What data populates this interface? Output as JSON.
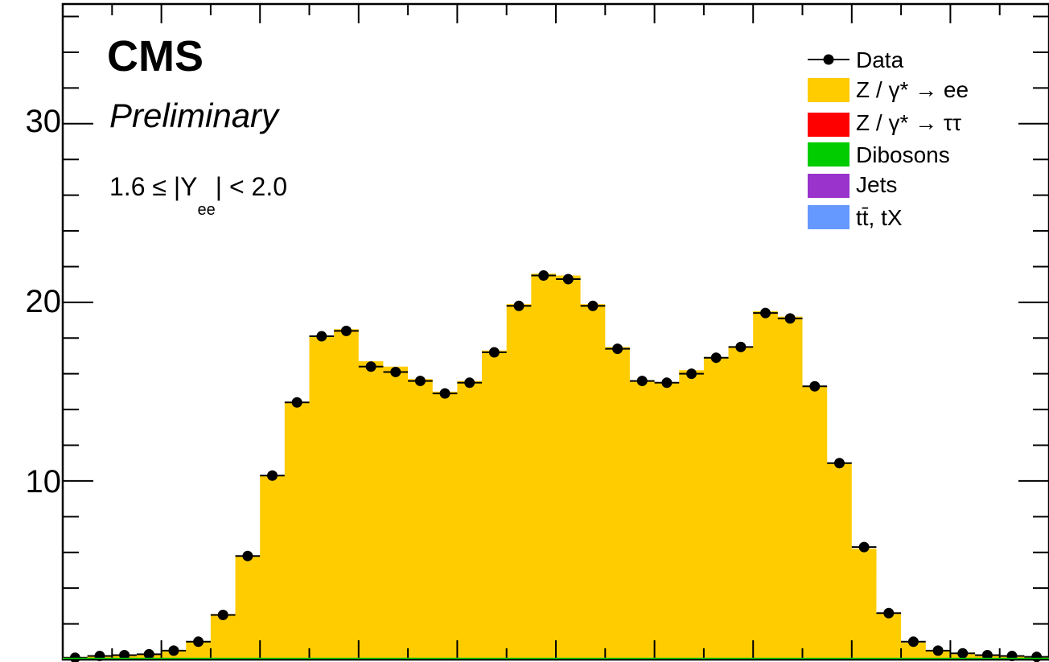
{
  "header": {
    "experiment": "CMS",
    "status": "Preliminary",
    "region": "1.6 ≤ |Y",
    "region_sub": "ee",
    "region_tail": "| < 2.0"
  },
  "legend": {
    "data": "Data",
    "z_ee_a": "Z / γ* → ee",
    "z_tt_a": "Z / γ* → ττ",
    "dibosons": "Dibosons",
    "jets": "Jets",
    "ttbar_a": "tt̄, tX"
  },
  "colors": {
    "z_ee": "#ffcc00",
    "z_tautau": "#ff0000",
    "dibosons": "#00cc00",
    "jets": "#9933cc",
    "ttbar": "#6699ff",
    "data": "#000000"
  },
  "chart_data": {
    "type": "bar",
    "title": "",
    "xlabel": "",
    "ylabel": "",
    "ylim": [
      0.0,
      36.7
    ],
    "y_ticks": [
      10,
      20,
      30
    ],
    "y_tick_labels": [
      "10",
      "20",
      "30"
    ],
    "n_bins": 40,
    "series": [
      {
        "name": "Z / γ* → ee",
        "color": "#ffcc00",
        "values": [
          0.15,
          0.2,
          0.25,
          0.3,
          0.45,
          1.0,
          2.55,
          5.8,
          10.3,
          14.4,
          18.1,
          18.5,
          16.7,
          16.4,
          15.7,
          15.0,
          15.6,
          17.3,
          19.9,
          21.6,
          21.5,
          19.9,
          17.5,
          15.6,
          15.5,
          16.2,
          16.9,
          17.5,
          19.5,
          19.2,
          15.3,
          11.0,
          6.2,
          2.6,
          0.95,
          0.5,
          0.3,
          0.25,
          0.2,
          0.15
        ]
      },
      {
        "name": "Z / γ* → ττ",
        "color": "#ff0000",
        "values": []
      },
      {
        "name": "Dibosons",
        "color": "#00cc00",
        "values": []
      },
      {
        "name": "Jets",
        "color": "#9933cc",
        "values": []
      },
      {
        "name": "tt̄, tX",
        "color": "#6699ff",
        "values": []
      },
      {
        "name": "Data",
        "color": "#000000",
        "values": [
          0.1,
          0.2,
          0.25,
          0.3,
          0.5,
          1.0,
          2.5,
          5.8,
          10.3,
          14.4,
          18.1,
          18.4,
          16.4,
          16.1,
          15.6,
          14.9,
          15.5,
          17.2,
          19.8,
          21.5,
          21.3,
          19.8,
          17.4,
          15.6,
          15.5,
          16.0,
          16.9,
          17.5,
          19.4,
          19.1,
          15.3,
          11.0,
          6.3,
          2.6,
          1.0,
          0.5,
          0.35,
          0.25,
          0.2,
          0.15
        ]
      }
    ]
  }
}
